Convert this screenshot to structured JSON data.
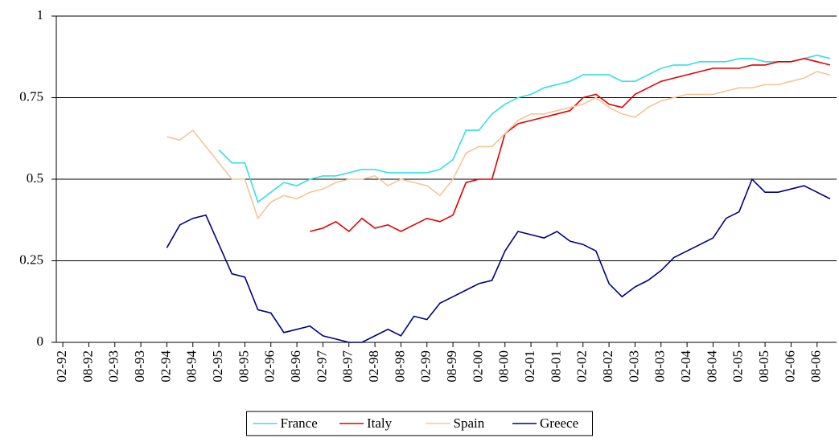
{
  "chart_data": {
    "type": "line",
    "categories": [
      "02-92",
      null,
      "08-92",
      null,
      "02-93",
      null,
      "08-93",
      null,
      "02-94",
      null,
      "08-94",
      null,
      "02-95",
      null,
      "08-95",
      null,
      "02-96",
      null,
      "08-96",
      null,
      "02-97",
      null,
      "08-97",
      null,
      "02-98",
      null,
      "08-98",
      null,
      "02-99",
      null,
      "08-99",
      null,
      "02-00",
      null,
      "08-00",
      null,
      "02-01",
      null,
      "08-01",
      null,
      "02-02",
      null,
      "08-02",
      null,
      "02-03",
      null,
      "08-03",
      null,
      "02-04",
      null,
      "08-04",
      null,
      "02-05",
      null,
      "08-05",
      null,
      "02-06",
      null,
      "08-06",
      null
    ],
    "series": [
      {
        "name": "France",
        "color": "#33e0e6",
        "values": [
          null,
          null,
          null,
          null,
          null,
          null,
          null,
          null,
          null,
          null,
          null,
          null,
          0.59,
          0.55,
          0.55,
          0.43,
          0.46,
          0.49,
          0.48,
          0.5,
          0.51,
          0.51,
          0.52,
          0.53,
          0.53,
          0.52,
          0.52,
          0.52,
          0.52,
          0.53,
          0.56,
          0.65,
          0.65,
          0.7,
          0.73,
          0.75,
          0.76,
          0.78,
          0.79,
          0.8,
          0.82,
          0.82,
          0.82,
          0.8,
          0.8,
          0.82,
          0.84,
          0.85,
          0.85,
          0.86,
          0.86,
          0.86,
          0.87,
          0.87,
          0.86,
          0.86,
          0.86,
          0.87,
          0.88,
          0.87
        ]
      },
      {
        "name": "Italy",
        "color": "#e00000",
        "values": [
          null,
          null,
          null,
          null,
          null,
          null,
          null,
          null,
          null,
          null,
          null,
          null,
          null,
          null,
          null,
          null,
          null,
          null,
          null,
          0.34,
          0.35,
          0.37,
          0.34,
          0.38,
          0.35,
          0.36,
          0.34,
          0.36,
          0.38,
          0.37,
          0.39,
          0.49,
          0.5,
          0.5,
          0.64,
          0.67,
          0.68,
          0.69,
          0.7,
          0.71,
          0.75,
          0.76,
          0.73,
          0.72,
          0.76,
          0.78,
          0.8,
          0.81,
          0.82,
          0.83,
          0.84,
          0.84,
          0.84,
          0.85,
          0.85,
          0.86,
          0.86,
          0.87,
          0.86,
          0.85
        ]
      },
      {
        "name": "Spain",
        "color": "#f5c596",
        "values": [
          null,
          null,
          null,
          null,
          null,
          null,
          null,
          null,
          0.63,
          0.62,
          0.65,
          0.6,
          0.55,
          0.5,
          0.5,
          0.38,
          0.43,
          0.45,
          0.44,
          0.46,
          0.47,
          0.49,
          0.5,
          0.5,
          0.51,
          0.48,
          0.5,
          0.49,
          0.48,
          0.45,
          0.5,
          0.58,
          0.6,
          0.6,
          0.64,
          0.68,
          0.7,
          0.7,
          0.71,
          0.72,
          0.73,
          0.75,
          0.72,
          0.7,
          0.69,
          0.72,
          0.74,
          0.75,
          0.76,
          0.76,
          0.76,
          0.77,
          0.78,
          0.78,
          0.79,
          0.79,
          0.8,
          0.81,
          0.83,
          0.82
        ]
      },
      {
        "name": "Greece",
        "color": "#000080",
        "values": [
          null,
          null,
          null,
          null,
          null,
          null,
          null,
          null,
          0.29,
          0.36,
          0.38,
          0.39,
          0.3,
          0.21,
          0.2,
          0.1,
          0.09,
          0.03,
          0.04,
          0.05,
          0.02,
          0.01,
          0,
          0,
          0.02,
          0.04,
          0.02,
          0.08,
          0.07,
          0.12,
          0.14,
          0.16,
          0.18,
          0.19,
          0.28,
          0.34,
          0.33,
          0.32,
          0.34,
          0.31,
          0.3,
          0.28,
          0.18,
          0.14,
          0.17,
          0.19,
          0.22,
          0.26,
          0.28,
          0.3,
          0.32,
          0.38,
          0.4,
          0.5,
          0.46,
          0.46,
          0.47,
          0.48,
          0.46,
          0.44
        ]
      }
    ],
    "ylim": [
      0,
      1
    ],
    "yticks": [
      0,
      0.25,
      0.5,
      0.75,
      1
    ],
    "grid": true,
    "legend": "bottom"
  }
}
